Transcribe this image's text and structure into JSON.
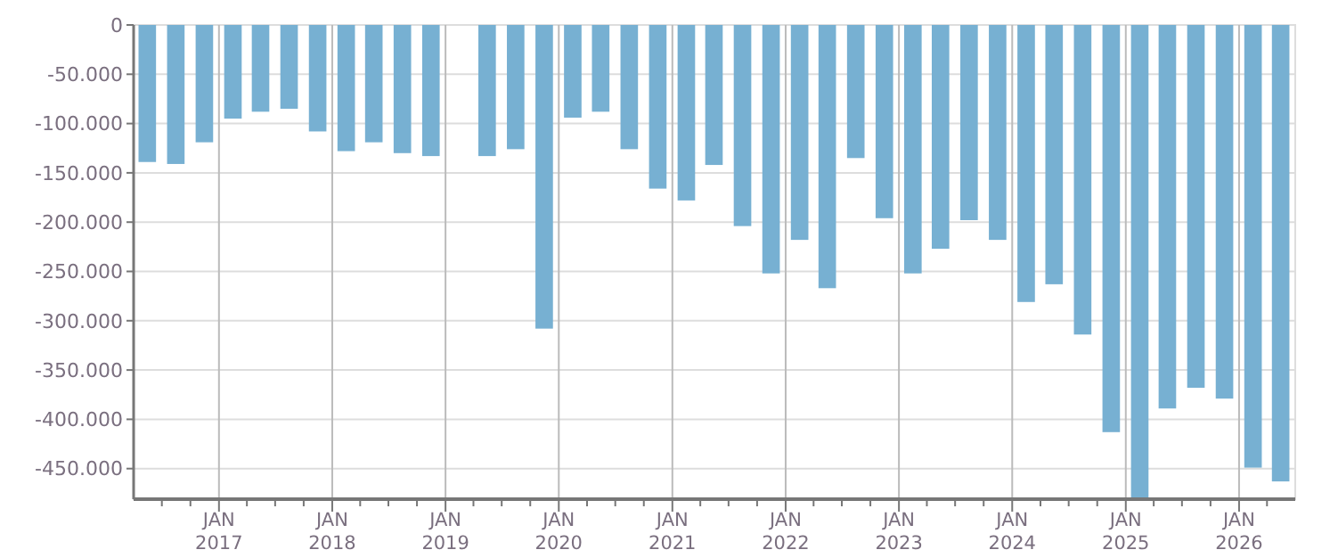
{
  "chart_data": {
    "type": "bar",
    "color": "#77b0d2",
    "x": [
      "2016-05-15",
      "2016-08-15",
      "2016-11-15",
      "2017-02-15",
      "2017-05-15",
      "2017-08-15",
      "2017-11-15",
      "2018-02-15",
      "2018-05-15",
      "2018-08-15",
      "2018-11-15",
      "2019-05-15",
      "2019-08-15",
      "2019-11-15",
      "2020-02-15",
      "2020-05-15",
      "2020-08-15",
      "2020-11-15",
      "2021-02-15",
      "2021-05-15",
      "2021-08-15",
      "2021-11-15",
      "2022-02-15",
      "2022-05-15",
      "2022-08-15",
      "2022-11-15",
      "2023-02-15",
      "2023-05-15",
      "2023-08-15",
      "2023-11-15",
      "2024-02-15",
      "2024-05-15",
      "2024-08-15",
      "2024-11-15",
      "2025-02-15",
      "2025-05-15",
      "2025-08-15",
      "2025-11-15",
      "2026-02-15",
      "2026-05-15"
    ],
    "values": [
      -139000,
      -141000,
      -119000,
      -95000,
      -88000,
      -85000,
      -108000,
      -128000,
      -119000,
      -130000,
      -133000,
      -133000,
      -126000,
      -308000,
      -94000,
      -88000,
      -126000,
      -166000,
      -178000,
      -142000,
      -204000,
      -252000,
      -218000,
      -267000,
      -135000,
      -196000,
      -252000,
      -227000,
      -198000,
      -218000,
      -281000,
      -263000,
      -314000,
      -413000,
      -481000,
      -389000,
      -368000,
      -379000,
      -449000,
      -463000
    ],
    "xlim": [
      "2016-04-01",
      "2026-07-01"
    ],
    "xticks": [
      {
        "value": "2016-07-01",
        "label": null
      },
      {
        "value": "2016-10-01",
        "label": null
      },
      {
        "value": "2017-01-01",
        "label": "JAN 2017"
      },
      {
        "value": "2017-04-01",
        "label": null
      },
      {
        "value": "2017-07-01",
        "label": null
      },
      {
        "value": "2017-10-01",
        "label": null
      },
      {
        "value": "2018-01-01",
        "label": "JAN 2018"
      },
      {
        "value": "2018-04-01",
        "label": null
      },
      {
        "value": "2018-07-01",
        "label": null
      },
      {
        "value": "2018-10-01",
        "label": null
      },
      {
        "value": "2019-01-01",
        "label": "JAN 2019"
      },
      {
        "value": "2019-04-01",
        "label": null
      },
      {
        "value": "2019-07-01",
        "label": null
      },
      {
        "value": "2019-10-01",
        "label": null
      },
      {
        "value": "2020-01-01",
        "label": "JAN 2020"
      },
      {
        "value": "2020-04-01",
        "label": null
      },
      {
        "value": "2020-07-01",
        "label": null
      },
      {
        "value": "2020-10-01",
        "label": null
      },
      {
        "value": "2021-01-01",
        "label": "JAN 2021"
      },
      {
        "value": "2021-04-01",
        "label": null
      },
      {
        "value": "2021-07-01",
        "label": null
      },
      {
        "value": "2021-10-01",
        "label": null
      },
      {
        "value": "2022-01-01",
        "label": "JAN 2022"
      },
      {
        "value": "2022-04-01",
        "label": null
      },
      {
        "value": "2022-07-01",
        "label": null
      },
      {
        "value": "2022-10-01",
        "label": null
      },
      {
        "value": "2023-01-01",
        "label": "JAN 2023"
      },
      {
        "value": "2023-04-01",
        "label": null
      },
      {
        "value": "2023-07-01",
        "label": null
      },
      {
        "value": "2023-10-01",
        "label": null
      },
      {
        "value": "2024-01-01",
        "label": "JAN 2024"
      },
      {
        "value": "2024-04-01",
        "label": null
      },
      {
        "value": "2024-07-01",
        "label": null
      },
      {
        "value": "2024-10-01",
        "label": null
      },
      {
        "value": "2025-01-01",
        "label": "JAN 2025"
      },
      {
        "value": "2025-04-01",
        "label": null
      },
      {
        "value": "2025-07-01",
        "label": null
      },
      {
        "value": "2025-10-01",
        "label": null
      },
      {
        "value": "2026-01-01",
        "label": "JAN 2026"
      },
      {
        "value": "2026-04-01",
        "label": null
      }
    ],
    "ylim": [
      -481000,
      0
    ],
    "yticks": [
      {
        "value": 0,
        "label": "0"
      },
      {
        "value": -50000,
        "label": "-50.000"
      },
      {
        "value": -100000,
        "label": "-100.000"
      },
      {
        "value": -150000,
        "label": "-150.000"
      },
      {
        "value": -200000,
        "label": "-200.000"
      },
      {
        "value": -250000,
        "label": "-250.000"
      },
      {
        "value": -300000,
        "label": "-300.000"
      },
      {
        "value": -350000,
        "label": "-350.000"
      },
      {
        "value": -400000,
        "label": "-400.000"
      },
      {
        "value": -450000,
        "label": "-450.000"
      }
    ],
    "grid": true
  }
}
